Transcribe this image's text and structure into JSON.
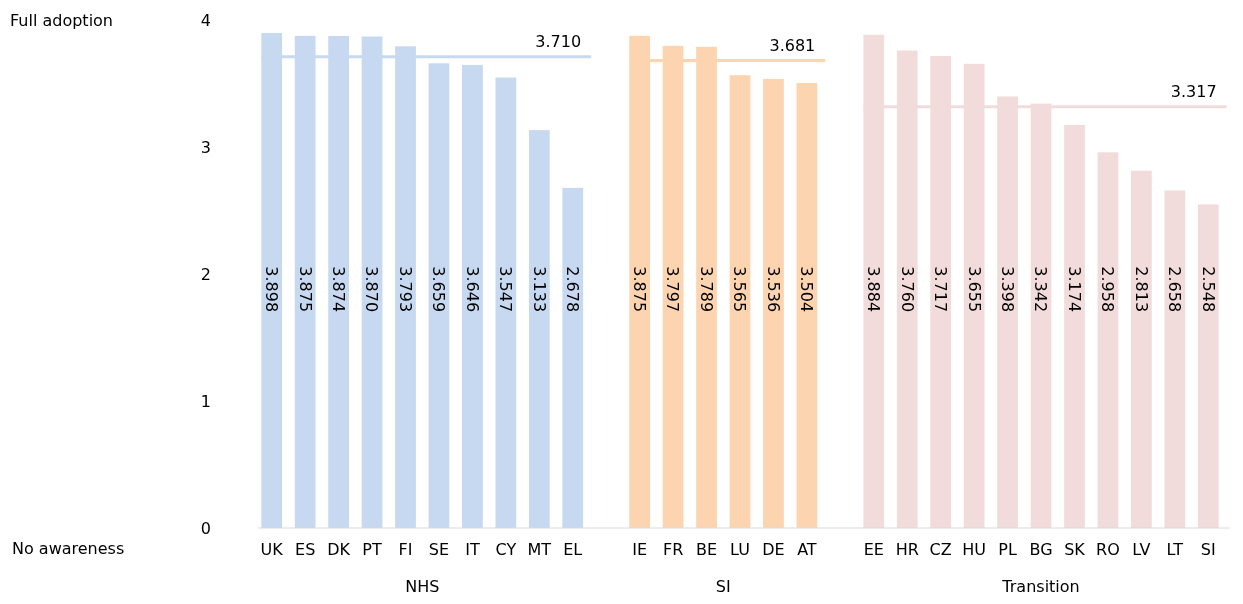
{
  "chart_data": {
    "type": "bar",
    "categories": [
      "UK",
      "ES",
      "DK",
      "PT",
      "FI",
      "SE",
      "IT",
      "CY",
      "MT",
      "EL",
      null,
      "IE",
      "FR",
      "BE",
      "LU",
      "DE",
      "AT",
      null,
      "EE",
      "HR",
      "CZ",
      "HU",
      "PL",
      "BG",
      "SK",
      "RO",
      "LV",
      "LT",
      "SI"
    ],
    "series": [
      {
        "color": "#c6d9f1",
        "values": [
          3.898,
          3.875,
          3.874,
          3.87,
          3.793,
          3.659,
          3.646,
          3.547,
          3.133,
          2.678,
          null,
          null,
          null,
          null,
          null,
          null,
          null,
          null,
          null,
          null,
          null,
          null,
          null,
          null,
          null,
          null,
          null,
          null,
          null
        ],
        "value_labels": [
          "3.898",
          "3.875",
          "3.874",
          "3.870",
          "3.793",
          "3.659",
          "3.646",
          "3.547",
          "3.133",
          "2.678",
          null,
          null,
          null,
          null,
          null,
          null,
          null,
          null,
          null,
          null,
          null,
          null,
          null,
          null,
          null,
          null,
          null,
          null,
          null
        ]
      },
      {
        "color": "#fcd5b0",
        "values": [
          null,
          null,
          null,
          null,
          null,
          null,
          null,
          null,
          null,
          null,
          null,
          3.875,
          3.797,
          3.789,
          3.565,
          3.536,
          3.504,
          null,
          null,
          null,
          null,
          null,
          null,
          null,
          null,
          null,
          null,
          null,
          null
        ],
        "value_labels": [
          null,
          null,
          null,
          null,
          null,
          null,
          null,
          null,
          null,
          null,
          null,
          "3.875",
          "3.797",
          "3.789",
          "3.565",
          "3.536",
          "3.504",
          null,
          null,
          null,
          null,
          null,
          null,
          null,
          null,
          null,
          null,
          null,
          null
        ]
      },
      {
        "color": "#f2dcdb",
        "values": [
          null,
          null,
          null,
          null,
          null,
          null,
          null,
          null,
          null,
          null,
          null,
          null,
          null,
          null,
          null,
          null,
          null,
          null,
          3.884,
          3.76,
          3.717,
          3.655,
          3.398,
          3.342,
          3.174,
          2.958,
          2.813,
          2.658,
          2.548
        ],
        "value_labels": [
          null,
          null,
          null,
          null,
          null,
          null,
          null,
          null,
          null,
          null,
          null,
          null,
          null,
          null,
          null,
          null,
          null,
          null,
          "3.884",
          "3.760",
          "3.717",
          "3.655",
          "3.398",
          "3.342",
          "3.174",
          "2.958",
          "2.813",
          "2.658",
          "2.548"
        ]
      }
    ],
    "ylim": [
      0,
      4
    ],
    "yticks": [
      0,
      1,
      2,
      3,
      4
    ],
    "grid": false,
    "ref_lines": [
      {
        "axis": "y",
        "value": 3.71,
        "label": "3.710",
        "color": "#c6d9f1"
      },
      {
        "axis": "y",
        "value": 3.681,
        "label": "3.681",
        "color": "#fcd5b0"
      },
      {
        "axis": "y",
        "value": 3.317,
        "label": "3.317",
        "color": "#f2dcdb"
      }
    ],
    "annotations": [
      "Full adoption",
      "No awareness",
      "NHS",
      "SI",
      "Transition"
    ]
  }
}
